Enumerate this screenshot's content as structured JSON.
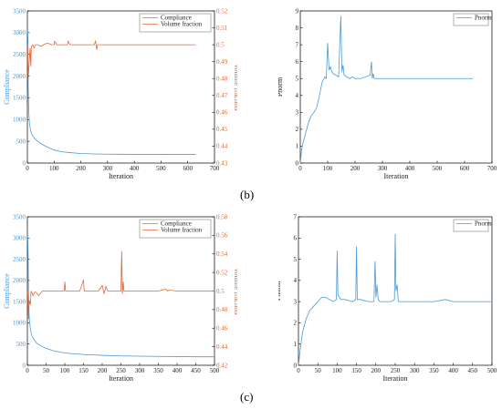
{
  "captions": {
    "b": "(b)",
    "c": "(c)"
  },
  "colors": {
    "blue": "#4a9ad6",
    "orange": "#e0693a",
    "axis": "#000000",
    "grid": "#d0d0d0"
  },
  "chart_data": [
    {
      "type": "line",
      "xlabel": "Iteration",
      "ylabel": "Compliance",
      "y2label": "Volume fraction",
      "xlim": [
        0,
        700
      ],
      "ylim": [
        0,
        3500
      ],
      "y2lim": [
        0.43,
        0.52
      ],
      "xticks": [
        0,
        100,
        200,
        300,
        400,
        500,
        600,
        700
      ],
      "yticks": [
        0,
        500,
        1000,
        1500,
        2000,
        2500,
        3000,
        3500
      ],
      "y2ticks": [
        0.43,
        0.44,
        0.45,
        0.46,
        0.47,
        0.48,
        0.49,
        0.5,
        0.51,
        0.52
      ],
      "legend_position": "top-right",
      "series": [
        {
          "name": "Compliance",
          "axis": "left",
          "x": [
            1,
            2,
            3,
            5,
            8,
            12,
            18,
            25,
            35,
            50,
            70,
            100,
            130,
            160,
            200,
            250,
            300,
            400,
            500,
            630
          ],
          "y": [
            3050,
            2900,
            1800,
            1200,
            900,
            750,
            650,
            580,
            520,
            450,
            380,
            300,
            260,
            240,
            220,
            210,
            205,
            200,
            200,
            198
          ]
        },
        {
          "name": "Volume fraction",
          "axis": "right",
          "x": [
            1,
            3,
            5,
            7,
            10,
            13,
            15,
            20,
            25,
            30,
            40,
            50,
            60,
            75,
            90,
            100,
            102,
            110,
            130,
            150,
            152,
            160,
            200,
            250,
            255,
            260,
            262,
            270,
            300,
            400,
            500,
            630
          ],
          "y": [
            0.5,
            0.48,
            0.485,
            0.49,
            0.498,
            0.487,
            0.499,
            0.5,
            0.498,
            0.5,
            0.5,
            0.499,
            0.5,
            0.501,
            0.5,
            0.5,
            0.502,
            0.5,
            0.5,
            0.5,
            0.502,
            0.5,
            0.5,
            0.5,
            0.502,
            0.497,
            0.5,
            0.5,
            0.5,
            0.5,
            0.5,
            0.5
          ]
        }
      ]
    },
    {
      "type": "line",
      "xlabel": "Iteration",
      "ylabel": "Pnorm",
      "xlim": [
        0,
        700
      ],
      "ylim": [
        0,
        9
      ],
      "xticks": [
        0,
        100,
        200,
        300,
        400,
        500,
        600,
        700
      ],
      "yticks": [
        0,
        1,
        2,
        3,
        4,
        5,
        6,
        7,
        8,
        9
      ],
      "legend_position": "top-right",
      "series": [
        {
          "name": "Pnorm",
          "axis": "left",
          "x": [
            0,
            5,
            10,
            20,
            30,
            40,
            50,
            60,
            70,
            80,
            90,
            95,
            100,
            105,
            110,
            115,
            120,
            130,
            140,
            148,
            152,
            156,
            160,
            170,
            180,
            190,
            200,
            210,
            220,
            240,
            255,
            260,
            263,
            266,
            270,
            280,
            300,
            350,
            400,
            450,
            500,
            550,
            630
          ],
          "y": [
            0,
            0.8,
            1.2,
            1.8,
            2.4,
            2.8,
            3.0,
            3.3,
            4.0,
            4.8,
            5.1,
            5.0,
            7.1,
            5.5,
            5.7,
            5.4,
            5.3,
            5.2,
            5.1,
            8.7,
            5.4,
            5.8,
            5.2,
            5.1,
            5.0,
            5.1,
            5.0,
            5.0,
            5.0,
            5.1,
            5.2,
            6.0,
            5.0,
            5.3,
            5.0,
            5.0,
            5.0,
            5.0,
            5.0,
            5.0,
            5.0,
            5.0,
            5.0
          ]
        }
      ]
    },
    {
      "type": "line",
      "xlabel": "Iteration",
      "ylabel": "Compliance",
      "y2label": "Volume fraction",
      "xlim": [
        0,
        500
      ],
      "ylim": [
        0,
        3500
      ],
      "y2lim": [
        0.42,
        0.58
      ],
      "xticks": [
        0,
        50,
        100,
        150,
        200,
        250,
        300,
        350,
        400,
        450,
        500
      ],
      "yticks": [
        0,
        500,
        1000,
        1500,
        2000,
        2500,
        3000,
        3500
      ],
      "y2ticks": [
        0.42,
        0.44,
        0.46,
        0.48,
        0.5,
        0.52,
        0.54,
        0.56,
        0.58
      ],
      "legend_position": "top-right",
      "series": [
        {
          "name": "Compliance",
          "axis": "left",
          "x": [
            1,
            2,
            3,
            5,
            8,
            12,
            18,
            25,
            35,
            50,
            70,
            100,
            130,
            160,
            200,
            250,
            300,
            350,
            400,
            450,
            500
          ],
          "y": [
            3050,
            2600,
            1700,
            1100,
            850,
            700,
            600,
            520,
            460,
            400,
            340,
            290,
            265,
            250,
            235,
            220,
            215,
            210,
            205,
            200,
            200
          ]
        },
        {
          "name": "Volume fraction",
          "axis": "right",
          "x": [
            1,
            3,
            5,
            8,
            10,
            15,
            20,
            25,
            30,
            40,
            50,
            60,
            80,
            98,
            100,
            102,
            110,
            140,
            150,
            152,
            160,
            190,
            200,
            205,
            210,
            215,
            220,
            240,
            250,
            252,
            254,
            256,
            258,
            260,
            300,
            350,
            370,
            375,
            380,
            400,
            450,
            500
          ],
          "y": [
            0.5,
            0.47,
            0.49,
            0.485,
            0.5,
            0.495,
            0.499,
            0.498,
            0.495,
            0.5,
            0.5,
            0.5,
            0.5,
            0.5,
            0.51,
            0.5,
            0.5,
            0.5,
            0.512,
            0.5,
            0.5,
            0.5,
            0.506,
            0.497,
            0.505,
            0.5,
            0.5,
            0.5,
            0.5,
            0.543,
            0.497,
            0.51,
            0.5,
            0.5,
            0.5,
            0.5,
            0.502,
            0.5,
            0.501,
            0.5,
            0.5,
            0.5
          ]
        }
      ]
    },
    {
      "type": "line",
      "xlabel": "Iteration",
      "ylabel": "Pnorm",
      "xlim": [
        0,
        500
      ],
      "ylim": [
        0,
        7
      ],
      "xticks": [
        0,
        50,
        100,
        150,
        200,
        250,
        300,
        350,
        400,
        450,
        500
      ],
      "yticks": [
        0,
        1,
        2,
        3,
        4,
        5,
        6,
        7
      ],
      "legend_position": "top-right",
      "series": [
        {
          "name": "Pnorm",
          "axis": "left",
          "x": [
            0,
            5,
            10,
            20,
            30,
            40,
            50,
            60,
            70,
            80,
            90,
            98,
            100,
            102,
            110,
            120,
            140,
            148,
            150,
            152,
            160,
            180,
            195,
            198,
            200,
            203,
            206,
            210,
            220,
            240,
            248,
            250,
            252,
            255,
            258,
            262,
            280,
            300,
            350,
            380,
            400,
            420,
            450,
            500
          ],
          "y": [
            0,
            0.8,
            1.5,
            2.2,
            2.6,
            2.8,
            3.0,
            3.2,
            3.2,
            3.1,
            3.0,
            3.1,
            5.4,
            3.3,
            3.1,
            3.1,
            3.0,
            3.1,
            5.6,
            3.1,
            3.1,
            3.0,
            3.0,
            4.9,
            3.2,
            3.8,
            3.1,
            3.0,
            3.0,
            3.0,
            3.1,
            6.2,
            3.5,
            3.8,
            3.0,
            3.0,
            3.0,
            3.0,
            3.0,
            3.1,
            3.0,
            3.0,
            3.0,
            3.0
          ]
        }
      ]
    }
  ]
}
